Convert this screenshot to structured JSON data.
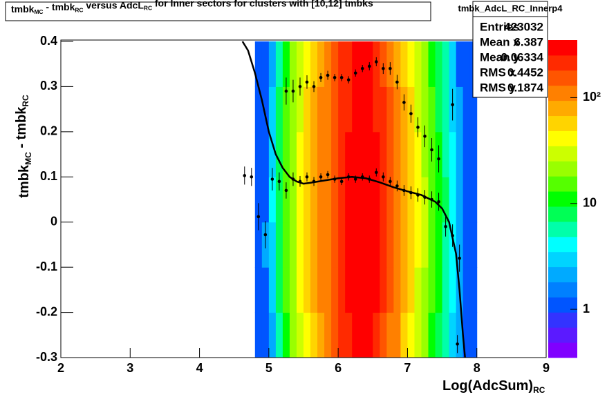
{
  "chart_data": {
    "type": "heatmap",
    "title_parts": [
      "tmbk",
      "MC",
      " - tmbk",
      "RC",
      " versus AdcL",
      "RC",
      " for Inner sectors for clusters with [10,12] tmbks"
    ],
    "ylabel_parts": [
      "tmbk",
      "MC",
      " - tmbk",
      "RC"
    ],
    "xlabel_parts": [
      "Log(AdcSum)",
      "RC"
    ],
    "xlim": [
      2,
      9
    ],
    "ylim": [
      -0.3,
      0.4
    ],
    "xticks": [
      2,
      3,
      4,
      5,
      6,
      7,
      8,
      9
    ],
    "yticks": [
      -0.3,
      -0.2,
      -0.1,
      0,
      0.1,
      0.2,
      0.3,
      0.4
    ],
    "zlim": [
      0.35,
      350
    ],
    "log_z": true,
    "zticks": [
      1,
      10,
      {
        "value": 100,
        "label": "10²"
      }
    ],
    "palette": [
      "#8000ff",
      "#5b1aff",
      "#3333ff",
      "#0055ff",
      "#0080ff",
      "#00aaff",
      "#00d4ff",
      "#00ffff",
      "#00ffaa",
      "#00ff55",
      "#00ff00",
      "#55ff00",
      "#99ff00",
      "#ccff00",
      "#ffff00",
      "#ffd400",
      "#ffaa00",
      "#ff8000",
      "#ff5500",
      "#ff2a00",
      "#ff0000"
    ],
    "xbin_edges": [
      4.8,
      4.9,
      5.0,
      5.1,
      5.2,
      5.3,
      5.4,
      5.5,
      5.6,
      5.7,
      5.8,
      5.9,
      6.0,
      6.1,
      6.2,
      6.3,
      6.4,
      6.5,
      6.6,
      6.7,
      6.8,
      6.9,
      7.0,
      7.1,
      7.2,
      7.3,
      7.4,
      7.5,
      7.6,
      7.7,
      7.8,
      7.9,
      8.0
    ],
    "ybin_edges": [
      -0.3,
      -0.2,
      -0.1,
      0,
      0.1,
      0.2,
      0.3,
      0.4
    ],
    "z": [
      [
        1,
        1,
        2,
        6,
        12,
        20,
        32,
        46,
        65,
        90,
        115,
        140,
        190,
        240,
        270,
        290,
        280,
        240,
        180,
        130,
        95,
        66,
        46,
        32,
        22,
        13,
        8,
        5,
        3,
        2,
        1,
        1
      ],
      [
        1,
        1,
        3,
        7,
        14,
        22,
        35,
        50,
        72,
        96,
        122,
        152,
        205,
        255,
        285,
        305,
        292,
        252,
        192,
        142,
        100,
        70,
        50,
        34,
        24,
        14,
        10,
        6,
        4,
        2,
        1,
        1
      ],
      [
        1,
        2,
        3,
        8,
        15,
        23,
        36,
        52,
        72,
        98,
        125,
        155,
        210,
        260,
        290,
        310,
        300,
        255,
        195,
        145,
        102,
        72,
        52,
        36,
        26,
        15,
        10,
        6,
        4,
        2,
        1,
        1
      ],
      [
        1,
        1,
        4,
        8,
        16,
        24,
        38,
        54,
        74,
        100,
        128,
        158,
        215,
        265,
        295,
        315,
        305,
        260,
        198,
        148,
        104,
        74,
        53,
        37,
        26,
        16,
        11,
        7,
        4,
        2,
        1,
        1
      ],
      [
        1,
        1,
        3,
        7,
        15,
        23,
        36,
        52,
        71,
        97,
        124,
        153,
        208,
        258,
        288,
        306,
        296,
        254,
        194,
        144,
        101,
        71,
        51,
        35,
        25,
        15,
        10,
        6,
        4,
        2,
        1,
        1
      ],
      [
        1,
        1,
        3,
        7,
        14,
        21,
        34,
        49,
        69,
        94,
        119,
        148,
        198,
        248,
        278,
        298,
        288,
        248,
        188,
        138,
        98,
        69,
        49,
        34,
        24,
        14,
        9,
        6,
        3,
        2,
        1,
        1
      ],
      [
        1,
        1,
        2,
        6,
        12,
        19,
        31,
        45,
        64,
        88,
        112,
        138,
        185,
        235,
        262,
        282,
        272,
        235,
        178,
        130,
        92,
        64,
        45,
        31,
        22,
        13,
        8,
        5,
        3,
        1,
        1,
        1
      ]
    ],
    "profile": {
      "x": [
        5.25,
        5.35,
        5.45,
        5.55,
        5.65,
        5.75,
        5.85,
        5.95,
        6.05,
        6.15,
        6.25,
        6.35,
        6.45,
        6.55,
        6.65,
        6.75,
        6.85,
        6.95,
        7.05,
        7.15,
        7.25,
        7.35,
        7.45,
        7.65,
        4.65,
        4.75,
        4.85,
        4.95,
        5.05,
        5.15,
        5.25,
        5.35,
        5.45,
        5.55,
        5.65,
        5.75,
        5.85,
        5.95,
        6.05,
        6.15,
        6.25,
        6.35,
        6.45,
        6.55,
        6.65,
        6.75,
        6.85,
        6.95,
        7.05,
        7.15,
        7.25,
        7.35,
        7.45,
        7.55,
        7.65,
        7.72,
        7.75
      ],
      "y": [
        0.29,
        0.29,
        0.3,
        0.31,
        0.3,
        0.32,
        0.325,
        0.32,
        0.32,
        0.315,
        0.33,
        0.34,
        0.345,
        0.355,
        0.34,
        0.34,
        0.31,
        0.265,
        0.24,
        0.21,
        0.19,
        0.16,
        0.14,
        0.26,
        0.103,
        0.1,
        0.012,
        -0.028,
        0.095,
        0.09,
        0.07,
        0.095,
        0.09,
        0.1,
        0.09,
        0.1,
        0.105,
        0.095,
        0.09,
        0.1,
        0.095,
        0.1,
        0.095,
        0.11,
        0.1,
        0.09,
        0.08,
        0.07,
        0.065,
        0.06,
        0.055,
        0.05,
        0.045,
        -0.01,
        -0.03,
        -0.27,
        -0.08
      ],
      "yerr": [
        0.03,
        0.025,
        0.02,
        0.015,
        0.012,
        0.01,
        0.01,
        0.008,
        0.008,
        0.008,
        0.008,
        0.008,
        0.009,
        0.01,
        0.012,
        0.014,
        0.016,
        0.018,
        0.02,
        0.022,
        0.024,
        0.026,
        0.03,
        0.035,
        0.02,
        0.02,
        0.03,
        0.03,
        0.025,
        0.02,
        0.018,
        0.015,
        0.012,
        0.01,
        0.01,
        0.008,
        0.008,
        0.008,
        0.008,
        0.008,
        0.008,
        0.008,
        0.008,
        0.009,
        0.01,
        0.01,
        0.012,
        0.012,
        0.014,
        0.015,
        0.016,
        0.018,
        0.02,
        0.022,
        0.025,
        0.02,
        0.03
      ]
    },
    "fit": {
      "x": [
        4.62,
        4.7,
        4.8,
        4.9,
        5.0,
        5.1,
        5.2,
        5.3,
        5.4,
        5.5,
        5.6,
        5.8,
        6.0,
        6.2,
        6.4,
        6.6,
        6.8,
        7.0,
        7.2,
        7.4,
        7.5,
        7.6,
        7.7,
        7.75,
        7.8,
        7.83
      ],
      "y": [
        0.4,
        0.38,
        0.33,
        0.27,
        0.2,
        0.15,
        0.12,
        0.1,
        0.09,
        0.085,
        0.087,
        0.092,
        0.097,
        0.1,
        0.097,
        0.088,
        0.077,
        0.068,
        0.06,
        0.045,
        0.03,
        0.0,
        -0.07,
        -0.15,
        -0.25,
        -0.3
      ]
    },
    "stats": {
      "name": "tmbk_AdcL_RC_Innerp4",
      "rows": [
        [
          "Entries",
          423032
        ],
        [
          "Mean x",
          6.387
        ],
        [
          "Mean y",
          0.06334
        ],
        [
          "RMS x",
          0.4452
        ],
        [
          "RMS y",
          0.1874
        ]
      ]
    }
  }
}
